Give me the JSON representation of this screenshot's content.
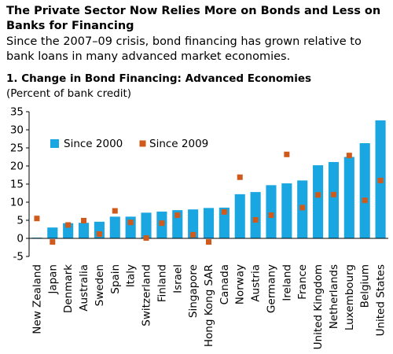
{
  "header": {
    "title": "The Private Sector Now Relies More on Bonds and Less on Banks for Financing",
    "subtitle": "Since the 2007–09 crisis, bond financing has grown relative to bank loans in many advanced market economies.",
    "chart_title": "1. Change in Bond Financing: Advanced Economies",
    "chart_units": "(Percent of bank credit)"
  },
  "chart_data": {
    "type": "bar",
    "title": "1. Change in Bond Financing: Advanced Economies",
    "subtitle": "(Percent of bank credit)",
    "categories": [
      "New Zealand",
      "Japan",
      "Denmark",
      "Australia",
      "Sweden",
      "Spain",
      "Italy",
      "Switzerland",
      "Finland",
      "Israel",
      "Singapore",
      "Hong Kong SAR",
      "Canada",
      "Norway",
      "Austria",
      "Germany",
      "Ireland",
      "France",
      "United Kingdom",
      "Netherlands",
      "Luxembourg",
      "Belgium",
      "United States"
    ],
    "series": [
      {
        "name": "Since 2000",
        "mark": "bar",
        "color": "#1aa7e1",
        "values": [
          0.2,
          3.0,
          4.2,
          4.3,
          4.6,
          6.0,
          6.0,
          7.1,
          7.4,
          7.8,
          8.0,
          8.4,
          8.5,
          12.2,
          12.8,
          14.7,
          15.2,
          16.0,
          20.2,
          21.1,
          22.5,
          26.3,
          32.6
        ]
      },
      {
        "name": "Since 2009",
        "mark": "square",
        "color": "#cf5a1c",
        "values": [
          5.5,
          -1.0,
          3.7,
          4.9,
          1.2,
          7.6,
          4.4,
          0.1,
          4.2,
          6.4,
          1.0,
          -1.0,
          7.3,
          16.9,
          5.1,
          6.4,
          23.2,
          8.5,
          12.0,
          12.1,
          22.9,
          10.5,
          16.0
        ]
      }
    ],
    "ylim": [
      -5,
      35
    ],
    "yticks": [
      -5,
      0,
      5,
      10,
      15,
      20,
      25,
      30,
      35
    ],
    "xlabel": "",
    "ylabel": "",
    "grid": false,
    "legend": "top-left"
  }
}
